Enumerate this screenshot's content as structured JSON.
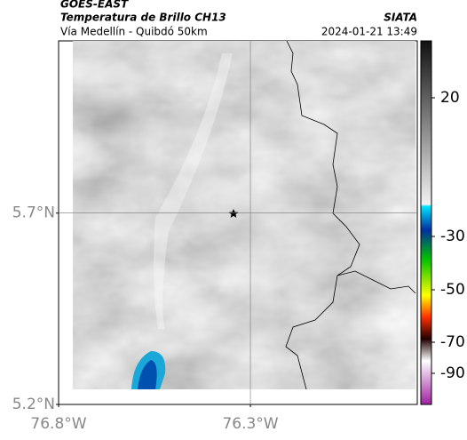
{
  "header": {
    "source": "GOES-EAST",
    "title": "Temperatura de Brillo CH13",
    "subtitle": "Vía Medellín - Quibdó 50km",
    "agency": "SIATA",
    "timestamp": "2024-01-21 13:49"
  },
  "map": {
    "latlim": [
      5.2,
      6.15
    ],
    "lonlim": [
      -76.8,
      -75.865
    ],
    "lat_ticks": [
      {
        "value": 5.2,
        "label": "5.2°N"
      },
      {
        "value": 5.7,
        "label": "5.7°N"
      }
    ],
    "lon_ticks": [
      {
        "value": -76.8,
        "label": "76.8°W"
      },
      {
        "value": -76.3,
        "label": "76.3°W"
      }
    ],
    "grid": true
  },
  "colorbar": {
    "ticks": [
      20,
      -30,
      -50,
      -70,
      -90
    ]
  }
}
